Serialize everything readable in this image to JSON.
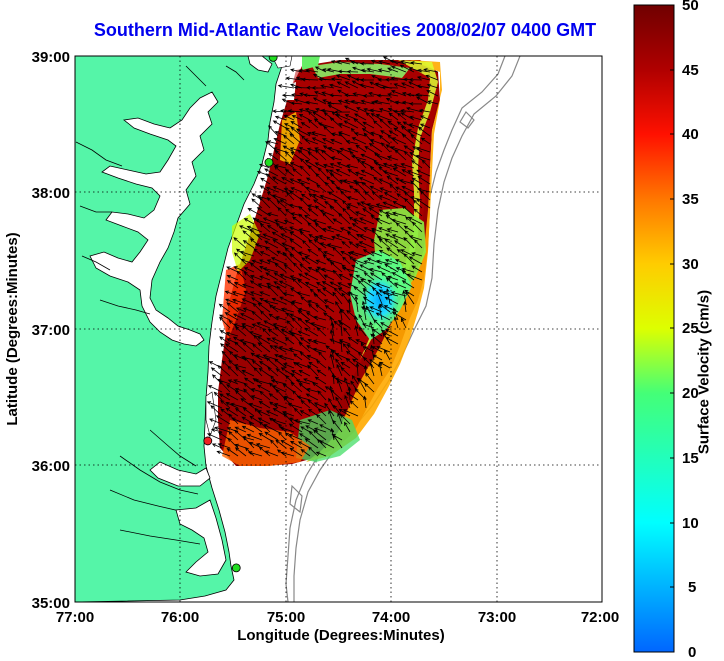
{
  "title": "Southern Mid-Atlantic Raw Velocities 2008/02/07 0400 GMT",
  "x_axis": {
    "label": "Longitude (Degrees:Minutes)",
    "ticks": [
      "77:00",
      "76:00",
      "75:00",
      "74:00",
      "73:00",
      "72:00"
    ]
  },
  "y_axis": {
    "label": "Latitude (Degrees:Minutes)",
    "ticks": [
      "39:00",
      "38:00",
      "37:00",
      "36:00",
      "35:00"
    ]
  },
  "colorbar": {
    "label": "Surface Velocity (cm/s)",
    "ticks": [
      "50",
      "45",
      "40",
      "35",
      "30",
      "25",
      "20",
      "15",
      "10",
      "5",
      "0"
    ],
    "min": 0,
    "max": 50
  },
  "colors": {
    "land": "#55f5a8",
    "water": "#ffffff",
    "title": "#0000ee",
    "station_green": "#22dd22",
    "station_red": "#ee2222"
  },
  "chart_data": {
    "type": "map",
    "extent": {
      "lon": [
        -77,
        -72
      ],
      "lat": [
        35,
        39
      ]
    },
    "grid": true,
    "stations": [
      {
        "lon": -75.12,
        "lat": 38.99,
        "color": "green"
      },
      {
        "lon": -75.16,
        "lat": 38.22,
        "color": "green"
      },
      {
        "lon": -75.74,
        "lat": 36.18,
        "color": "red"
      },
      {
        "lon": -75.47,
        "lat": 35.25,
        "color": "green"
      }
    ]
  }
}
